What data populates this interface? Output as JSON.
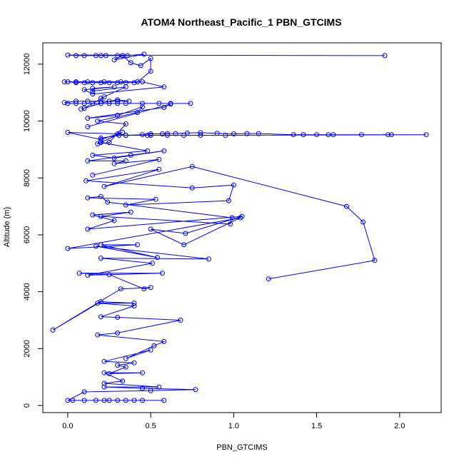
{
  "chart_data": {
    "type": "line",
    "title": "ATOM4 Northeast_Pacific_1 PBN_GTCIMS",
    "xlabel": "PBN_GTCIMS",
    "ylabel": "Altitude (m)",
    "xlim": [
      -0.15,
      2.25
    ],
    "ylim": [
      -250,
      12750
    ],
    "x_ticks": [
      0,
      0.5,
      1,
      1.5,
      2
    ],
    "x_tick_labels": [
      "0.0",
      "0.5",
      "1.0",
      "1.5",
      "2.0"
    ],
    "y_ticks": [
      0,
      2000,
      4000,
      6000,
      8000,
      10000,
      12000
    ],
    "y_tick_labels": [
      "0",
      "2000",
      "4000",
      "6000",
      "8000",
      "10000",
      "12000"
    ],
    "grid": false,
    "legend": "none",
    "colors": {
      "series": "#0000ff",
      "axes": "#000000",
      "background": "#ffffff"
    },
    "series": [
      {
        "marker": "open-circle",
        "line": true,
        "points": [
          {
            "x": 0.58,
            "y": 180
          },
          {
            "x": 0.45,
            "y": 180
          },
          {
            "x": 0.4,
            "y": 180
          },
          {
            "x": 0.35,
            "y": 180
          },
          {
            "x": 0.3,
            "y": 180
          },
          {
            "x": 0.25,
            "y": 180
          },
          {
            "x": 0.22,
            "y": 180
          },
          {
            "x": 0.17,
            "y": 180
          },
          {
            "x": 0.1,
            "y": 180
          },
          {
            "x": 0.03,
            "y": 180
          },
          {
            "x": 0.0,
            "y": 180
          },
          {
            "x": 0.1,
            "y": 480
          },
          {
            "x": 0.5,
            "y": 520
          },
          {
            "x": 0.77,
            "y": 560
          },
          {
            "x": 0.45,
            "y": 600
          },
          {
            "x": 0.22,
            "y": 650
          },
          {
            "x": 0.55,
            "y": 650
          },
          {
            "x": 0.22,
            "y": 780
          },
          {
            "x": 0.33,
            "y": 860
          },
          {
            "x": 0.22,
            "y": 1150
          },
          {
            "x": 0.45,
            "y": 1150
          },
          {
            "x": 0.25,
            "y": 1120
          },
          {
            "x": 0.35,
            "y": 1350
          },
          {
            "x": 0.3,
            "y": 1420
          },
          {
            "x": 0.4,
            "y": 1500
          },
          {
            "x": 0.22,
            "y": 1550
          },
          {
            "x": 0.5,
            "y": 1950
          },
          {
            "x": 0.35,
            "y": 1650
          },
          {
            "x": 0.52,
            "y": 2100
          },
          {
            "x": 0.58,
            "y": 2250
          },
          {
            "x": 0.18,
            "y": 2480
          },
          {
            "x": 0.3,
            "y": 2550
          },
          {
            "x": 0.68,
            "y": 3000
          },
          {
            "x": 0.3,
            "y": 3100
          },
          {
            "x": 0.2,
            "y": 3120
          },
          {
            "x": 0.4,
            "y": 3500
          },
          {
            "x": 0.18,
            "y": 3600
          },
          {
            "x": 0.4,
            "y": 3600
          },
          {
            "x": 0.2,
            "y": 3650
          },
          {
            "x": -0.09,
            "y": 2650
          },
          {
            "x": 0.32,
            "y": 4100
          },
          {
            "x": 0.5,
            "y": 4150
          },
          {
            "x": 0.46,
            "y": 4100
          },
          {
            "x": 0.25,
            "y": 4600
          },
          {
            "x": 0.07,
            "y": 4650
          },
          {
            "x": 0.57,
            "y": 4650
          },
          {
            "x": 0.12,
            "y": 4580
          },
          {
            "x": 0.51,
            "y": 5000
          },
          {
            "x": 0.2,
            "y": 5180
          },
          {
            "x": 0.85,
            "y": 5150
          },
          {
            "x": 0.17,
            "y": 5600
          },
          {
            "x": 0.54,
            "y": 5200
          },
          {
            "x": 0.2,
            "y": 5650
          },
          {
            "x": 0.42,
            "y": 5650
          },
          {
            "x": 0.0,
            "y": 5520
          },
          {
            "x": 1.04,
            "y": 6600
          },
          {
            "x": 0.7,
            "y": 5650
          },
          {
            "x": 0.5,
            "y": 6200
          },
          {
            "x": 0.71,
            "y": 6050
          },
          {
            "x": 1.05,
            "y": 6650
          },
          {
            "x": 0.12,
            "y": 6200
          },
          {
            "x": 0.28,
            "y": 6500
          },
          {
            "x": 0.15,
            "y": 6700
          },
          {
            "x": 0.38,
            "y": 6800
          },
          {
            "x": 0.2,
            "y": 6650
          },
          {
            "x": 0.98,
            "y": 6380
          },
          {
            "x": 0.99,
            "y": 6600
          },
          {
            "x": 0.24,
            "y": 7150
          },
          {
            "x": 0.2,
            "y": 7350
          },
          {
            "x": 0.12,
            "y": 7300
          },
          {
            "x": 0.53,
            "y": 7250
          },
          {
            "x": 0.35,
            "y": 7050
          },
          {
            "x": 0.97,
            "y": 7200
          },
          {
            "x": 1.0,
            "y": 7750
          },
          {
            "x": 0.75,
            "y": 7650
          },
          {
            "x": 0.11,
            "y": 7900
          },
          {
            "x": 0.55,
            "y": 8300
          },
          {
            "x": 0.22,
            "y": 7700
          },
          {
            "x": 0.75,
            "y": 8400
          },
          {
            "x": 1.68,
            "y": 7000
          },
          {
            "x": 1.78,
            "y": 6450
          },
          {
            "x": 1.85,
            "y": 5100
          },
          {
            "x": 1.21,
            "y": 4450
          }
        ]
      },
      {
        "marker": "open-circle",
        "line": true,
        "points": [
          {
            "x": 0.15,
            "y": 8100
          },
          {
            "x": 0.55,
            "y": 8650
          },
          {
            "x": 0.28,
            "y": 8500
          },
          {
            "x": 0.35,
            "y": 8600
          },
          {
            "x": 0.12,
            "y": 8600
          },
          {
            "x": 0.38,
            "y": 8800
          },
          {
            "x": 0.58,
            "y": 8950
          },
          {
            "x": 0.28,
            "y": 8700
          },
          {
            "x": 0.15,
            "y": 8800
          },
          {
            "x": 0.48,
            "y": 8950
          },
          {
            "x": 0.2,
            "y": 9250
          },
          {
            "x": 0.33,
            "y": 9600
          },
          {
            "x": 0.2,
            "y": 9350
          },
          {
            "x": 0.0,
            "y": 9600
          },
          {
            "x": 0.3,
            "y": 9550
          },
          {
            "x": 0.35,
            "y": 9500
          },
          {
            "x": 0.45,
            "y": 9520
          },
          {
            "x": 0.5,
            "y": 9550
          },
          {
            "x": 0.57,
            "y": 9550
          },
          {
            "x": 0.6,
            "y": 9560
          },
          {
            "x": 0.65,
            "y": 9560
          },
          {
            "x": 0.72,
            "y": 9580
          },
          {
            "x": 0.8,
            "y": 9590
          },
          {
            "x": 0.9,
            "y": 9570
          },
          {
            "x": 1.0,
            "y": 9550
          },
          {
            "x": 1.08,
            "y": 9560
          },
          {
            "x": 1.15,
            "y": 9560
          },
          {
            "x": 1.36,
            "y": 9520
          },
          {
            "x": 1.42,
            "y": 9520
          },
          {
            "x": 1.5,
            "y": 9520
          },
          {
            "x": 1.57,
            "y": 9520
          },
          {
            "x": 1.6,
            "y": 9520
          },
          {
            "x": 1.77,
            "y": 9520
          },
          {
            "x": 1.93,
            "y": 9520
          },
          {
            "x": 1.95,
            "y": 9520
          },
          {
            "x": 2.16,
            "y": 9520
          },
          {
            "x": 0.95,
            "y": 9500
          },
          {
            "x": 0.8,
            "y": 9500
          },
          {
            "x": 0.7,
            "y": 9500
          },
          {
            "x": 0.6,
            "y": 9500
          },
          {
            "x": 0.5,
            "y": 9500
          },
          {
            "x": 0.48,
            "y": 9500
          },
          {
            "x": 0.35,
            "y": 9500
          },
          {
            "x": 0.31,
            "y": 9500
          },
          {
            "x": 0.2,
            "y": 9400
          },
          {
            "x": 0.18,
            "y": 9200
          },
          {
            "x": 0.25,
            "y": 9250
          },
          {
            "x": 0.35,
            "y": 9900
          },
          {
            "x": 0.18,
            "y": 10000
          },
          {
            "x": 0.42,
            "y": 10300
          },
          {
            "x": 0.45,
            "y": 10500
          },
          {
            "x": 0.3,
            "y": 10200
          },
          {
            "x": 0.12,
            "y": 10100
          },
          {
            "x": 0.58,
            "y": 10480
          },
          {
            "x": 0.62,
            "y": 10600
          },
          {
            "x": 0.12,
            "y": 9800
          }
        ]
      },
      {
        "marker": "open-circle",
        "line": true,
        "points": [
          {
            "x": 0.74,
            "y": 10620
          },
          {
            "x": 0.62,
            "y": 10620
          },
          {
            "x": 0.55,
            "y": 10620
          },
          {
            "x": 0.45,
            "y": 10620
          },
          {
            "x": 0.35,
            "y": 10620
          },
          {
            "x": 0.3,
            "y": 10620
          },
          {
            "x": 0.25,
            "y": 10620
          },
          {
            "x": 0.2,
            "y": 10620
          },
          {
            "x": 0.15,
            "y": 10620
          },
          {
            "x": 0.1,
            "y": 10620
          },
          {
            "x": 0.05,
            "y": 10620
          },
          {
            "x": 0.0,
            "y": 10620
          },
          {
            "x": -0.02,
            "y": 10650
          },
          {
            "x": 0.05,
            "y": 10700
          },
          {
            "x": 0.12,
            "y": 10700
          },
          {
            "x": 0.2,
            "y": 10700
          },
          {
            "x": 0.3,
            "y": 10700
          },
          {
            "x": 0.37,
            "y": 10700
          },
          {
            "x": 0.3,
            "y": 10750
          },
          {
            "x": 0.25,
            "y": 10700
          },
          {
            "x": 0.08,
            "y": 10420
          },
          {
            "x": 0.1,
            "y": 10450
          },
          {
            "x": 0.22,
            "y": 10850
          },
          {
            "x": 0.2,
            "y": 10800
          },
          {
            "x": 0.35,
            "y": 11200
          },
          {
            "x": 0.15,
            "y": 11050
          },
          {
            "x": 0.15,
            "y": 11150
          },
          {
            "x": 0.28,
            "y": 11200
          },
          {
            "x": 0.1,
            "y": 11100
          },
          {
            "x": 0.15,
            "y": 10950
          },
          {
            "x": 0.58,
            "y": 11200
          },
          {
            "x": 0.45,
            "y": 11380
          },
          {
            "x": 0.4,
            "y": 11350
          },
          {
            "x": 0.35,
            "y": 11350
          },
          {
            "x": 0.3,
            "y": 11350
          },
          {
            "x": 0.25,
            "y": 11350
          },
          {
            "x": 0.2,
            "y": 11350
          },
          {
            "x": 0.15,
            "y": 11350
          },
          {
            "x": 0.1,
            "y": 11350
          },
          {
            "x": 0.05,
            "y": 11350
          },
          {
            "x": 0.0,
            "y": 11380
          },
          {
            "x": -0.02,
            "y": 11380
          },
          {
            "x": 0.05,
            "y": 11380
          },
          {
            "x": 0.12,
            "y": 11380
          },
          {
            "x": 0.22,
            "y": 11380
          },
          {
            "x": 0.32,
            "y": 11380
          },
          {
            "x": 0.42,
            "y": 11380
          },
          {
            "x": 0.5,
            "y": 11750
          },
          {
            "x": 0.5,
            "y": 12200
          },
          {
            "x": 0.44,
            "y": 11950
          },
          {
            "x": 0.38,
            "y": 12050
          },
          {
            "x": 0.33,
            "y": 12300
          },
          {
            "x": 0.28,
            "y": 12150
          },
          {
            "x": 0.46,
            "y": 12350
          },
          {
            "x": 0.36,
            "y": 12300
          },
          {
            "x": 0.33,
            "y": 12300
          },
          {
            "x": 0.3,
            "y": 12300
          },
          {
            "x": 0.23,
            "y": 12300
          },
          {
            "x": 0.2,
            "y": 12300
          },
          {
            "x": 0.17,
            "y": 12300
          },
          {
            "x": 0.1,
            "y": 12300
          },
          {
            "x": 0.05,
            "y": 12300
          },
          {
            "x": 0.0,
            "y": 12320
          },
          {
            "x": 1.91,
            "y": 12300
          }
        ]
      }
    ]
  }
}
